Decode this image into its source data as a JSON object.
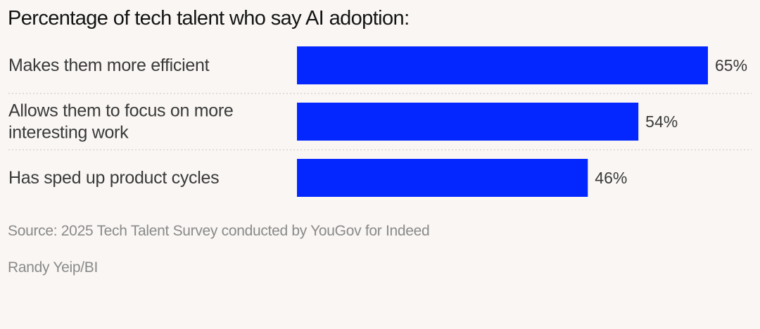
{
  "title": "Percentage of tech talent who say AI adoption:",
  "chart_data": {
    "type": "bar",
    "orientation": "horizontal",
    "title": "Percentage of tech talent who say AI adoption:",
    "categories": [
      [
        "Makes them more efficient"
      ],
      [
        "Allows them to focus on more",
        "interesting work"
      ],
      [
        "Has sped up product cycles"
      ]
    ],
    "values": [
      65,
      54,
      46
    ],
    "value_labels": [
      "65%",
      "54%",
      "46%"
    ],
    "bar_color": "#0527ff",
    "separator_color": "#c8c4c0",
    "grid": false,
    "legend": "none"
  },
  "footer": {
    "source": "Source: 2025 Tech Talent Survey conducted by YouGov for Indeed",
    "credit": "Randy Yeip/BI"
  }
}
